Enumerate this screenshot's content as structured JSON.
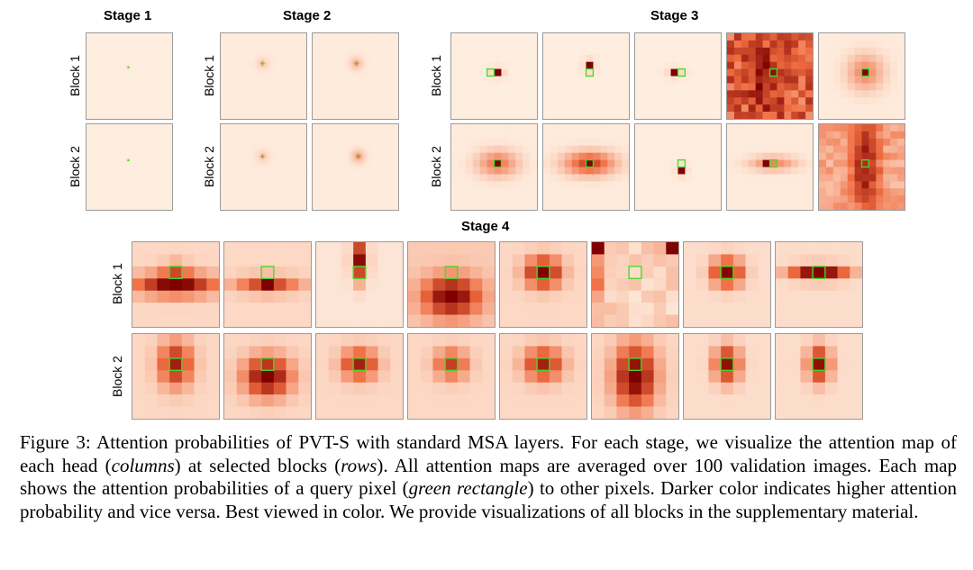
{
  "figure": {
    "row_labels": [
      "Block 1",
      "Block 2"
    ],
    "stages": [
      {
        "name": "Stage 1",
        "heads": 1
      },
      {
        "name": "Stage 2",
        "heads": 2
      },
      {
        "name": "Stage 3",
        "heads": 5
      },
      {
        "name": "Stage 4",
        "heads": 8
      }
    ]
  },
  "caption": {
    "prefix": "Figure 3: Attention probabilities of PVT-S with standard MSA layers. For each stage, we visualize the attention map of each head (",
    "em1": "columns",
    "mid1": ") at selected blocks (",
    "em2": "rows",
    "mid2": "). All attention maps are averaged over 100 validation images. Each map shows the attention probabilities of a query pixel (",
    "em3": "green rectangle",
    "suffix": ") to other pixels. Darker color indicates higher attention probability and vice versa. Best viewed in color. We provide visualizations of all blocks in the supplementary material."
  },
  "colors": {
    "low": "#fff3e6",
    "mid": "#ef6b3f",
    "high": "#7f0000",
    "query": "#44dd22",
    "border": "#9a9a9a"
  }
}
